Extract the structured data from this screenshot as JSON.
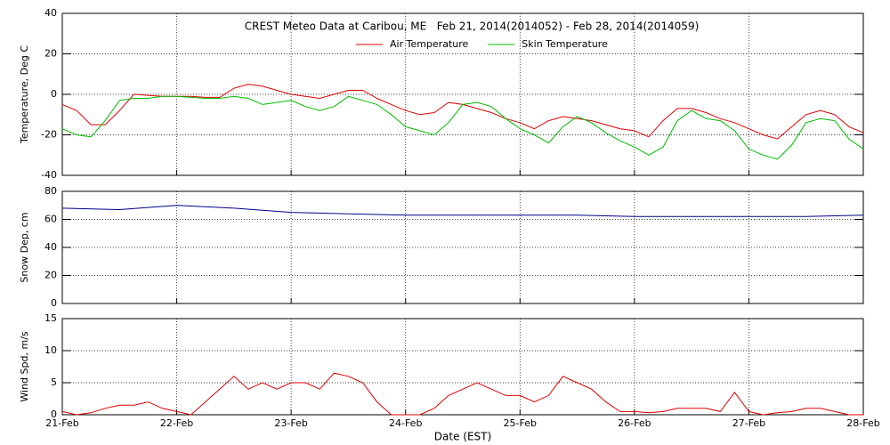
{
  "chart_data": [
    {
      "type": "line",
      "title": "CREST Meteo Data at Caribou, ME   Feb 21, 2014(2014052) - Feb 28, 2014(2014059)",
      "ylabel": "Temperature, Deg C",
      "x": [
        0,
        0.125,
        0.25,
        0.375,
        0.5,
        0.625,
        0.75,
        0.875,
        1,
        1.125,
        1.25,
        1.375,
        1.5,
        1.625,
        1.75,
        1.875,
        2,
        2.125,
        2.25,
        2.375,
        2.5,
        2.625,
        2.75,
        2.875,
        3,
        3.125,
        3.25,
        3.375,
        3.5,
        3.625,
        3.75,
        3.875,
        4,
        4.125,
        4.25,
        4.375,
        4.5,
        4.625,
        4.75,
        4.875,
        5,
        5.125,
        5.25,
        5.375,
        5.5,
        5.625,
        5.75,
        5.875,
        6,
        6.125,
        6.25,
        6.375,
        6.5,
        6.625,
        6.75,
        6.875,
        7
      ],
      "series": [
        {
          "name": "Air Temperature",
          "color": "#dd0000",
          "values": [
            -5,
            -8,
            -15,
            -15,
            -8,
            0,
            -0.5,
            -1,
            -1,
            -1,
            -1.5,
            -1.5,
            3,
            5,
            4,
            2,
            0,
            -1,
            -2,
            0,
            2,
            2,
            -2,
            -5,
            -8,
            -10,
            -9,
            -4,
            -5,
            -7,
            -9,
            -12,
            -14,
            -17,
            -13,
            -11,
            -12,
            -13,
            -15,
            -17,
            -18,
            -21,
            -13,
            -7,
            -7,
            -9,
            -12,
            -14,
            -17,
            -20,
            -22,
            -16,
            -10,
            -8,
            -10,
            -16,
            -19
          ]
        },
        {
          "name": "Skin Temperature",
          "color": "#00bb00",
          "values": [
            -17,
            -20,
            -21,
            -13,
            -3,
            -2,
            -2,
            -1,
            -1,
            -1.5,
            -2,
            -2,
            -1,
            -2,
            -5,
            -4,
            -3,
            -6,
            -8,
            -6,
            -1,
            -3,
            -5,
            -10,
            -16,
            -18,
            -20,
            -14,
            -5,
            -4,
            -6,
            -12,
            -17,
            -20,
            -24,
            -16,
            -11,
            -14,
            -19,
            -23,
            -26,
            -30,
            -26,
            -13,
            -8,
            -12,
            -13,
            -18,
            -27,
            -30,
            -32,
            -25,
            -14,
            -12,
            -13,
            -22,
            -27
          ]
        }
      ],
      "xlim": [
        0,
        7
      ],
      "ylim": [
        -40,
        40
      ],
      "yticks": [
        -40,
        -20,
        0,
        20,
        40
      ],
      "grid": true
    },
    {
      "type": "line",
      "ylabel": "Snow Dep, cm",
      "x": [
        0,
        0.5,
        1,
        1.5,
        2,
        2.5,
        3,
        3.5,
        4,
        4.5,
        5,
        5.5,
        6,
        6.5,
        7
      ],
      "series": [
        {
          "color": "#000088",
          "values": [
            68,
            67,
            70,
            68,
            65,
            64,
            63,
            63,
            63,
            63,
            62,
            62,
            62,
            62,
            63
          ]
        }
      ],
      "xlim": [
        0,
        7
      ],
      "ylim": [
        0,
        80
      ],
      "yticks": [
        0,
        20,
        40,
        60,
        80
      ],
      "grid": true
    },
    {
      "type": "line",
      "ylabel": "Wind Spd, m/s",
      "xlabel": "Date (EST)",
      "x": [
        0,
        0.125,
        0.25,
        0.375,
        0.5,
        0.625,
        0.75,
        0.875,
        1,
        1.125,
        1.25,
        1.375,
        1.5,
        1.625,
        1.75,
        1.875,
        2,
        2.125,
        2.25,
        2.375,
        2.5,
        2.625,
        2.75,
        2.875,
        3,
        3.125,
        3.25,
        3.375,
        3.5,
        3.625,
        3.75,
        3.875,
        4,
        4.125,
        4.25,
        4.375,
        4.5,
        4.625,
        4.75,
        4.875,
        5,
        5.125,
        5.25,
        5.375,
        5.5,
        5.625,
        5.75,
        5.875,
        6,
        6.125,
        6.25,
        6.375,
        6.5,
        6.625,
        6.75,
        6.875,
        7
      ],
      "series": [
        {
          "color": "#dd0000",
          "values": [
            0.5,
            0,
            0.3,
            1,
            1.5,
            1.5,
            2,
            1,
            0.5,
            0,
            2,
            4,
            6,
            4,
            5,
            4,
            5,
            5,
            4,
            6.5,
            6,
            5,
            2,
            0,
            0,
            0,
            1,
            3,
            4,
            5,
            4,
            3,
            3,
            2,
            3,
            6,
            5,
            4,
            2,
            0.5,
            0.5,
            0.3,
            0.5,
            1,
            1,
            1,
            0.5,
            3.5,
            0.5,
            0,
            0.3,
            0.5,
            1,
            1,
            0.5,
            0,
            0
          ]
        }
      ],
      "xlim": [
        0,
        7
      ],
      "xticks": [
        {
          "value": 0,
          "label": "21-Feb"
        },
        {
          "value": 1,
          "label": "22-Feb"
        },
        {
          "value": 2,
          "label": "23-Feb"
        },
        {
          "value": 3,
          "label": "24-Feb"
        },
        {
          "value": 4,
          "label": "25-Feb"
        },
        {
          "value": 5,
          "label": "26-Feb"
        },
        {
          "value": 6,
          "label": "27-Feb"
        },
        {
          "value": 7,
          "label": "28-Feb"
        }
      ],
      "ylim": [
        0,
        15
      ],
      "yticks": [
        0,
        5,
        10,
        15
      ],
      "grid": true
    }
  ]
}
